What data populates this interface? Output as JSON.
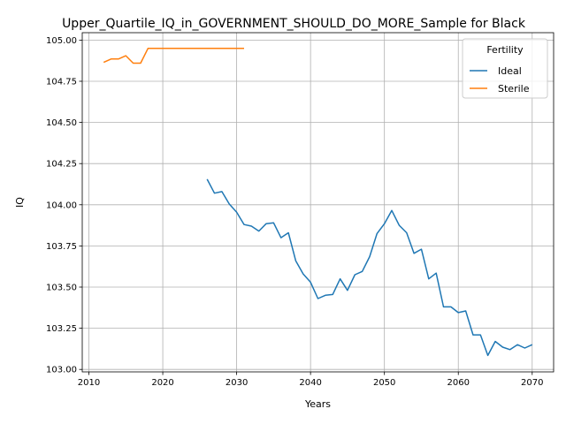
{
  "chart_data": {
    "type": "line",
    "title": "Upper_Quartile_IQ_in_GOVERNMENT_SHOULD_DO_MORE_Sample for Black",
    "xlabel": "Years",
    "ylabel": "IQ",
    "xlim": [
      2009.1,
      2072.9
    ],
    "ylim": [
      102.985,
      105.045
    ],
    "xticks": [
      2010,
      2020,
      2030,
      2040,
      2050,
      2060,
      2070
    ],
    "yticks": [
      103.0,
      103.25,
      103.5,
      103.75,
      104.0,
      104.25,
      104.5,
      104.75,
      105.0
    ],
    "grid": true,
    "legend": {
      "title": "Fertility",
      "placement": "top-right"
    },
    "series": [
      {
        "name": "Ideal",
        "color": "#1f77b4",
        "x": [
          2026,
          2027,
          2028,
          2029,
          2030,
          2031,
          2032,
          2033,
          2034,
          2035,
          2036,
          2037,
          2038,
          2039,
          2040,
          2041,
          2042,
          2043,
          2044,
          2045,
          2046,
          2047,
          2048,
          2049,
          2050,
          2051,
          2052,
          2053,
          2054,
          2055,
          2056,
          2057,
          2058,
          2059,
          2060,
          2061,
          2062,
          2063,
          2064,
          2065,
          2066,
          2067,
          2068,
          2069,
          2070
        ],
        "y": [
          104.155,
          104.07,
          104.08,
          104.005,
          103.955,
          103.88,
          103.87,
          103.84,
          103.885,
          103.89,
          103.8,
          103.83,
          103.66,
          103.58,
          103.53,
          103.43,
          103.45,
          103.455,
          103.55,
          103.48,
          103.575,
          103.595,
          103.685,
          103.825,
          103.885,
          103.965,
          103.875,
          103.83,
          103.705,
          103.73,
          103.55,
          103.585,
          103.38,
          103.38,
          103.345,
          103.355,
          103.21,
          103.21,
          103.085,
          103.17,
          103.135,
          103.12,
          103.15,
          103.13,
          103.15
        ]
      },
      {
        "name": "Sterile",
        "color": "#ff7f0e",
        "x": [
          2012,
          2013,
          2014,
          2015,
          2016,
          2017,
          2018,
          2019,
          2020,
          2021,
          2022,
          2023,
          2024,
          2025,
          2026,
          2027,
          2028,
          2029,
          2030,
          2031
        ],
        "y": [
          104.865,
          104.885,
          104.885,
          104.905,
          104.86,
          104.86,
          104.95,
          104.95,
          104.95,
          104.95,
          104.95,
          104.95,
          104.95,
          104.95,
          104.95,
          104.95,
          104.95,
          104.95,
          104.95,
          104.95
        ]
      }
    ]
  }
}
